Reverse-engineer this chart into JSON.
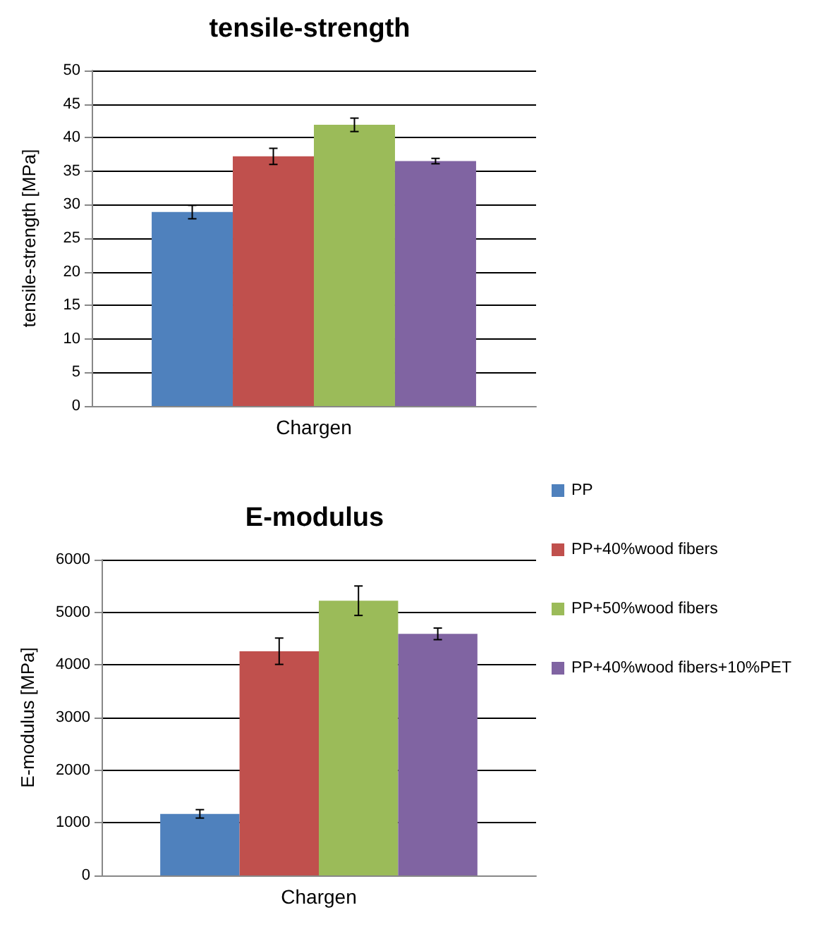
{
  "chart_data": [
    {
      "type": "bar",
      "title": "tensile-strength",
      "ylabel": "tensile-strength [MPa]",
      "categories": [
        "Chargen"
      ],
      "ylim": [
        0,
        50
      ],
      "yticks": [
        0,
        5,
        10,
        15,
        20,
        25,
        30,
        35,
        40,
        45,
        50
      ],
      "grid": "y",
      "legend": false,
      "series": [
        {
          "color": "#4f81bd",
          "values": [
            28.9
          ],
          "errors": [
            1
          ]
        },
        {
          "color": "#c0504d",
          "values": [
            37.2
          ],
          "errors": [
            1.2
          ]
        },
        {
          "color": "#9bbb59",
          "values": [
            41.9
          ],
          "errors": [
            1
          ]
        },
        {
          "color": "#8064a2",
          "values": [
            36.5
          ],
          "errors": [
            0.4
          ]
        }
      ]
    },
    {
      "type": "bar",
      "title": "E-modulus",
      "ylabel": "E-modulus [MPa]",
      "categories": [
        "Chargen"
      ],
      "ylim": [
        0,
        6000
      ],
      "yticks": [
        0,
        1000,
        2000,
        3000,
        4000,
        5000,
        6000
      ],
      "grid": "y",
      "legend": "right",
      "series": [
        {
          "name": "PP",
          "color": "#4f81bd",
          "values": [
            1170
          ],
          "errors": [
            80
          ]
        },
        {
          "name": "PP+40%wood fibers",
          "color": "#c0504d",
          "values": [
            4260
          ],
          "errors": [
            250
          ]
        },
        {
          "name": "PP+50%wood fibers",
          "color": "#9bbb59",
          "values": [
            5220
          ],
          "errors": [
            280
          ]
        },
        {
          "name": "PP+40%wood fibers+10%PET",
          "color": "#8064a2",
          "values": [
            4590
          ],
          "errors": [
            110
          ]
        }
      ]
    }
  ]
}
